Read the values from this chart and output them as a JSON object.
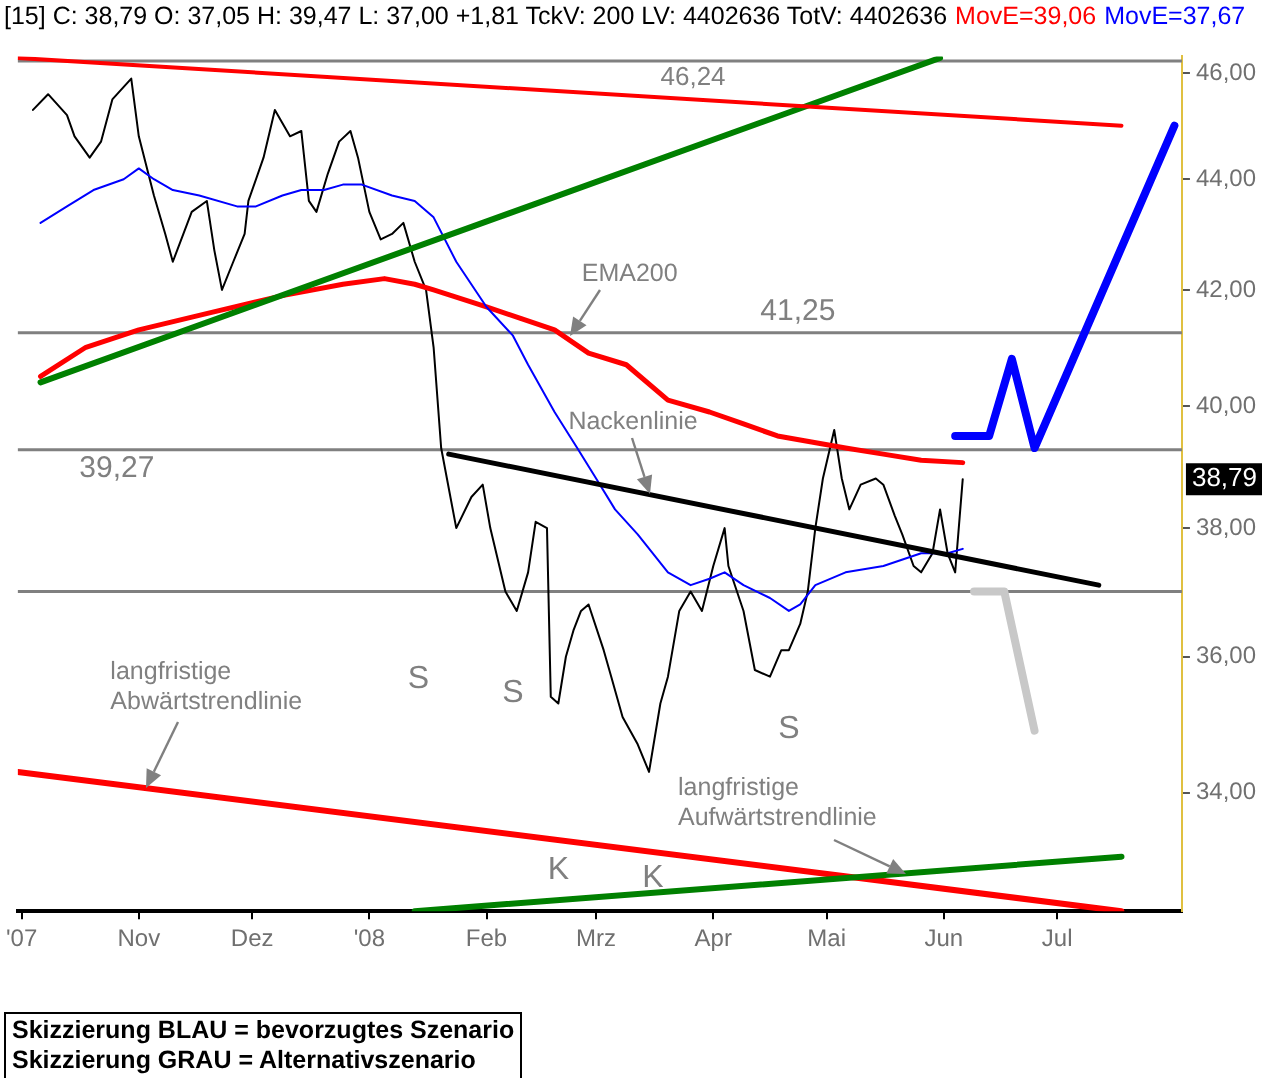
{
  "chart_data": {
    "type": "line",
    "title": "[15] C: 38,79 O: 37,05 H: 39,47 L: 37,00 +1,81 TckV: 200 LV: 4402636 TotV: 4402636",
    "legend": "top",
    "grid": false,
    "marker": "none",
    "log": "y",
    "line_style": "solid",
    "xlim": [
      "2007-09-30",
      "2008-08-03"
    ],
    "xticks": [
      {
        "value": "2007-10-01",
        "label": "'07"
      },
      {
        "value": "2007-11-01",
        "label": "Nov"
      },
      {
        "value": "2007-12-01",
        "label": "Dez"
      },
      {
        "value": "2008-01-01",
        "label": "'08"
      },
      {
        "value": "2008-02-01",
        "label": "Feb"
      },
      {
        "value": "2008-03-01",
        "label": "Mrz"
      },
      {
        "value": "2008-04-01",
        "label": "Apr"
      },
      {
        "value": "2008-05-01",
        "label": "Mai"
      },
      {
        "value": "2008-06-01",
        "label": "Jun"
      },
      {
        "value": "2008-07-01",
        "label": "Jul"
      }
    ],
    "ylim": [
      32.35,
      46.33
    ],
    "yticks": [
      {
        "value": 34,
        "label": "34,00"
      },
      {
        "value": 36,
        "label": "36,00"
      },
      {
        "value": 38,
        "label": "38,00"
      },
      {
        "value": 40,
        "label": "40,00"
      },
      {
        "value": 42,
        "label": "42,00"
      },
      {
        "value": 44,
        "label": "44,00"
      },
      {
        "value": 46,
        "label": "46,00"
      }
    ],
    "series": [
      {
        "color": "#000000",
        "x": [
          "2007-10-04",
          "2007-10-08",
          "2007-10-13",
          "2007-10-15",
          "2007-10-19",
          "2007-10-22",
          "2007-10-25",
          "2007-10-30",
          "2007-11-01",
          "2007-11-05",
          "2007-11-08",
          "2007-11-10",
          "2007-11-15",
          "2007-11-19",
          "2007-11-21",
          "2007-11-23",
          "2007-11-26",
          "2007-11-29",
          "2007-11-30",
          "2007-12-04",
          "2007-12-07",
          "2007-12-11",
          "2007-12-14",
          "2007-12-16",
          "2007-12-18",
          "2007-12-21",
          "2007-12-24",
          "2007-12-27",
          "2007-12-29",
          "2008-01-01",
          "2008-01-04",
          "2008-01-07",
          "2008-01-10",
          "2008-01-13",
          "2008-01-16",
          "2008-01-18",
          "2008-01-20",
          "2008-01-24",
          "2008-01-28",
          "2008-01-31",
          "2008-02-02",
          "2008-02-06",
          "2008-02-09",
          "2008-02-12",
          "2008-02-14",
          "2008-02-17",
          "2008-02-18",
          "2008-02-20",
          "2008-02-22",
          "2008-02-24",
          "2008-02-26",
          "2008-02-28",
          "2008-03-03",
          "2008-03-05",
          "2008-03-08",
          "2008-03-12",
          "2008-03-15",
          "2008-03-18",
          "2008-03-20",
          "2008-03-23",
          "2008-03-26",
          "2008-03-29",
          "2008-04-01",
          "2008-04-04",
          "2008-04-05",
          "2008-04-09",
          "2008-04-12",
          "2008-04-16",
          "2008-04-19",
          "2008-04-21",
          "2008-04-24",
          "2008-04-26",
          "2008-04-28",
          "2008-04-30",
          "2008-05-03",
          "2008-05-05",
          "2008-05-07",
          "2008-05-10",
          "2008-05-14",
          "2008-05-16",
          "2008-05-19",
          "2008-05-21",
          "2008-05-24",
          "2008-05-26",
          "2008-05-29",
          "2008-05-31",
          "2008-06-02",
          "2008-06-04",
          "2008-06-06"
        ],
        "values": [
          45.3,
          45.6,
          45.2,
          44.8,
          44.4,
          44.7,
          45.5,
          45.9,
          44.8,
          43.7,
          43.0,
          42.5,
          43.4,
          43.6,
          42.7,
          42.0,
          42.5,
          43.0,
          43.6,
          44.4,
          45.3,
          44.8,
          44.9,
          43.6,
          43.4,
          44.1,
          44.7,
          44.9,
          44.4,
          43.4,
          42.9,
          43.0,
          43.2,
          42.5,
          42.0,
          41.0,
          39.3,
          38.0,
          38.5,
          38.7,
          38.0,
          37.0,
          36.7,
          37.3,
          38.1,
          38.0,
          35.4,
          35.3,
          36.0,
          36.4,
          36.7,
          36.8,
          36.1,
          35.7,
          35.1,
          34.7,
          34.3,
          35.3,
          35.7,
          36.7,
          37.0,
          36.7,
          37.4,
          38.0,
          37.4,
          36.7,
          35.8,
          35.7,
          36.1,
          36.1,
          36.5,
          37.0,
          38.0,
          38.8,
          39.6,
          38.8,
          38.3,
          38.7,
          38.8,
          38.7,
          38.2,
          37.9,
          37.4,
          37.3,
          37.6,
          38.3,
          37.6,
          37.3,
          38.79
        ]
      },
      {
        "name": "MovE=39,06",
        "color": "#ff0000",
        "x": [
          "2007-10-06",
          "2007-10-18",
          "2007-11-01",
          "2007-11-20",
          "2007-12-09",
          "2007-12-25",
          "2008-01-05",
          "2008-01-13",
          "2008-01-18",
          "2008-02-01",
          "2008-02-10",
          "2008-02-19",
          "2008-02-28",
          "2008-03-09",
          "2008-03-20",
          "2008-03-31",
          "2008-04-09",
          "2008-04-18",
          "2008-04-27",
          "2008-05-06",
          "2008-05-16",
          "2008-05-26",
          "2008-06-06"
        ],
        "values": [
          40.5,
          41.0,
          41.3,
          41.6,
          41.9,
          42.1,
          42.2,
          42.1,
          42.0,
          41.7,
          41.5,
          41.3,
          40.9,
          40.7,
          40.1,
          39.9,
          39.7,
          39.5,
          39.4,
          39.3,
          39.2,
          39.1,
          39.06
        ]
      },
      {
        "name": "MovE=37,67",
        "color": "#0000ff",
        "x": [
          "2007-10-06",
          "2007-10-13",
          "2007-10-20",
          "2007-10-28",
          "2007-11-01",
          "2007-11-05",
          "2007-11-10",
          "2007-11-17",
          "2007-11-27",
          "2007-12-02",
          "2007-12-09",
          "2007-12-14",
          "2007-12-20",
          "2007-12-25",
          "2007-12-30",
          "2008-01-07",
          "2008-01-13",
          "2008-01-18",
          "2008-01-24",
          "2008-02-01",
          "2008-02-08",
          "2008-02-12",
          "2008-02-19",
          "2008-02-25",
          "2008-03-01",
          "2008-03-06",
          "2008-03-12",
          "2008-03-20",
          "2008-03-26",
          "2008-03-31",
          "2008-04-04",
          "2008-04-09",
          "2008-04-16",
          "2008-04-21",
          "2008-04-24",
          "2008-04-28",
          "2008-05-06",
          "2008-05-16",
          "2008-05-26",
          "2008-06-02",
          "2008-06-06"
        ],
        "values": [
          43.2,
          43.5,
          43.8,
          44.0,
          44.2,
          44.0,
          43.8,
          43.7,
          43.5,
          43.5,
          43.7,
          43.8,
          43.8,
          43.9,
          43.9,
          43.7,
          43.6,
          43.3,
          42.5,
          41.7,
          41.2,
          40.7,
          39.9,
          39.3,
          38.8,
          38.3,
          37.9,
          37.3,
          37.1,
          37.2,
          37.3,
          37.1,
          36.9,
          36.7,
          36.8,
          37.1,
          37.3,
          37.4,
          37.6,
          37.6,
          37.67
        ]
      },
      {
        "color": "#008000",
        "x": [
          "2007-10-06",
          "2008-05-31"
        ],
        "values": [
          40.4,
          46.3
        ]
      },
      {
        "color": "#ff0000",
        "x": [
          "2007-09-30",
          "2008-07-18"
        ],
        "values": [
          46.3,
          45.0
        ]
      },
      {
        "color": "#ff0000",
        "x": [
          "2007-09-30",
          "2008-07-18"
        ],
        "values": [
          34.3,
          32.35
        ]
      },
      {
        "color": "#008000",
        "x": [
          "2008-01-13",
          "2008-07-18"
        ],
        "values": [
          32.35,
          33.1
        ]
      },
      {
        "color": "#000000",
        "x": [
          "2008-01-22",
          "2008-07-12"
        ],
        "values": [
          39.2,
          37.1
        ]
      },
      {
        "color": "#0000ff",
        "x": [
          "2008-06-04",
          "2008-06-13",
          "2008-06-19",
          "2008-06-25",
          "2008-08-01"
        ],
        "values": [
          39.5,
          39.5,
          40.8,
          39.3,
          45.0
        ]
      },
      {
        "color": "#c8c8c8",
        "x": [
          "2008-06-09",
          "2008-06-17",
          "2008-06-25"
        ],
        "values": [
          37.0,
          37.0,
          34.9
        ]
      }
    ],
    "ref_lines": [
      {
        "axis": "y",
        "value": 46.24,
        "label": "46,24",
        "color": "#808080"
      },
      {
        "axis": "y",
        "value": 41.25,
        "label": "41,25",
        "color": "#808080"
      },
      {
        "axis": "y",
        "value": 39.27,
        "label": "39,27",
        "color": "#808080"
      },
      {
        "axis": "y",
        "value": 37.0,
        "color": "#808080"
      }
    ],
    "annotations": [
      "S",
      "S",
      "S",
      "K",
      "K",
      {
        "text": "EMA200",
        "x": "2008-02-23",
        "y": 41.2
      },
      {
        "text": "Nackenlinie",
        "x": "2008-03-15",
        "y": 38.55
      },
      {
        "text": "langfristige\nAbwärtstrendlinie",
        "x": "2007-11-03",
        "y": 34.07
      },
      {
        "text": "langfristige\nAufwärtstrendlinie",
        "x": "2008-05-22",
        "y": 32.87
      },
      {
        "text": "38,79",
        "y": 38.79
      },
      "Skizzierung BLAU = bevorzugtes Szenario\nSkizzierung GRAU = Alternativszenario"
    ]
  }
}
